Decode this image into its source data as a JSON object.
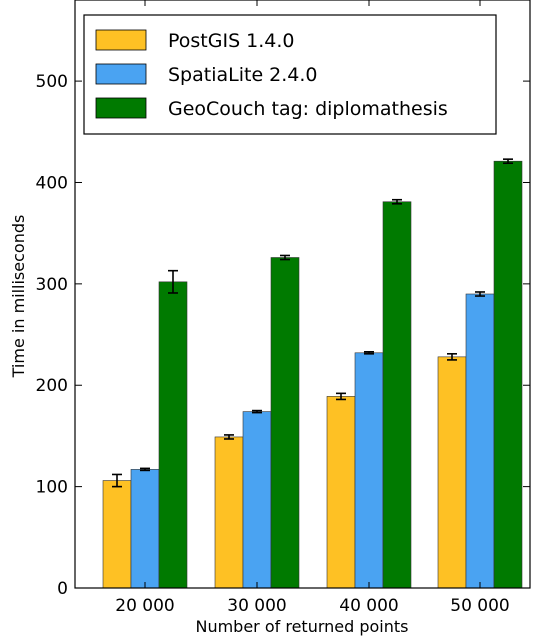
{
  "chart_data": {
    "type": "bar",
    "title": "",
    "xlabel": "Number of returned points",
    "ylabel": "Time in milliseconds",
    "categories": [
      "20 000",
      "30 000",
      "40 000",
      "50 000"
    ],
    "ylim": [
      0,
      580
    ],
    "yticks": [
      0,
      100,
      200,
      300,
      400,
      500
    ],
    "grid": false,
    "legend_position": "top-left",
    "series": [
      {
        "name": "PostGIS 1.4.0",
        "color": "#fec124",
        "values": [
          106,
          149,
          189,
          228
        ],
        "errors": [
          6,
          2,
          3,
          3
        ]
      },
      {
        "name": "SpatiaLite 2.4.0",
        "color": "#4aa3f2",
        "values": [
          117,
          174,
          232,
          290
        ],
        "errors": [
          1,
          1,
          1,
          2
        ]
      },
      {
        "name": "GeoCouch tag: diplomathesis",
        "color": "#007a00",
        "values": [
          302,
          326,
          381,
          421
        ],
        "errors": [
          11,
          2,
          2,
          2
        ]
      }
    ]
  }
}
